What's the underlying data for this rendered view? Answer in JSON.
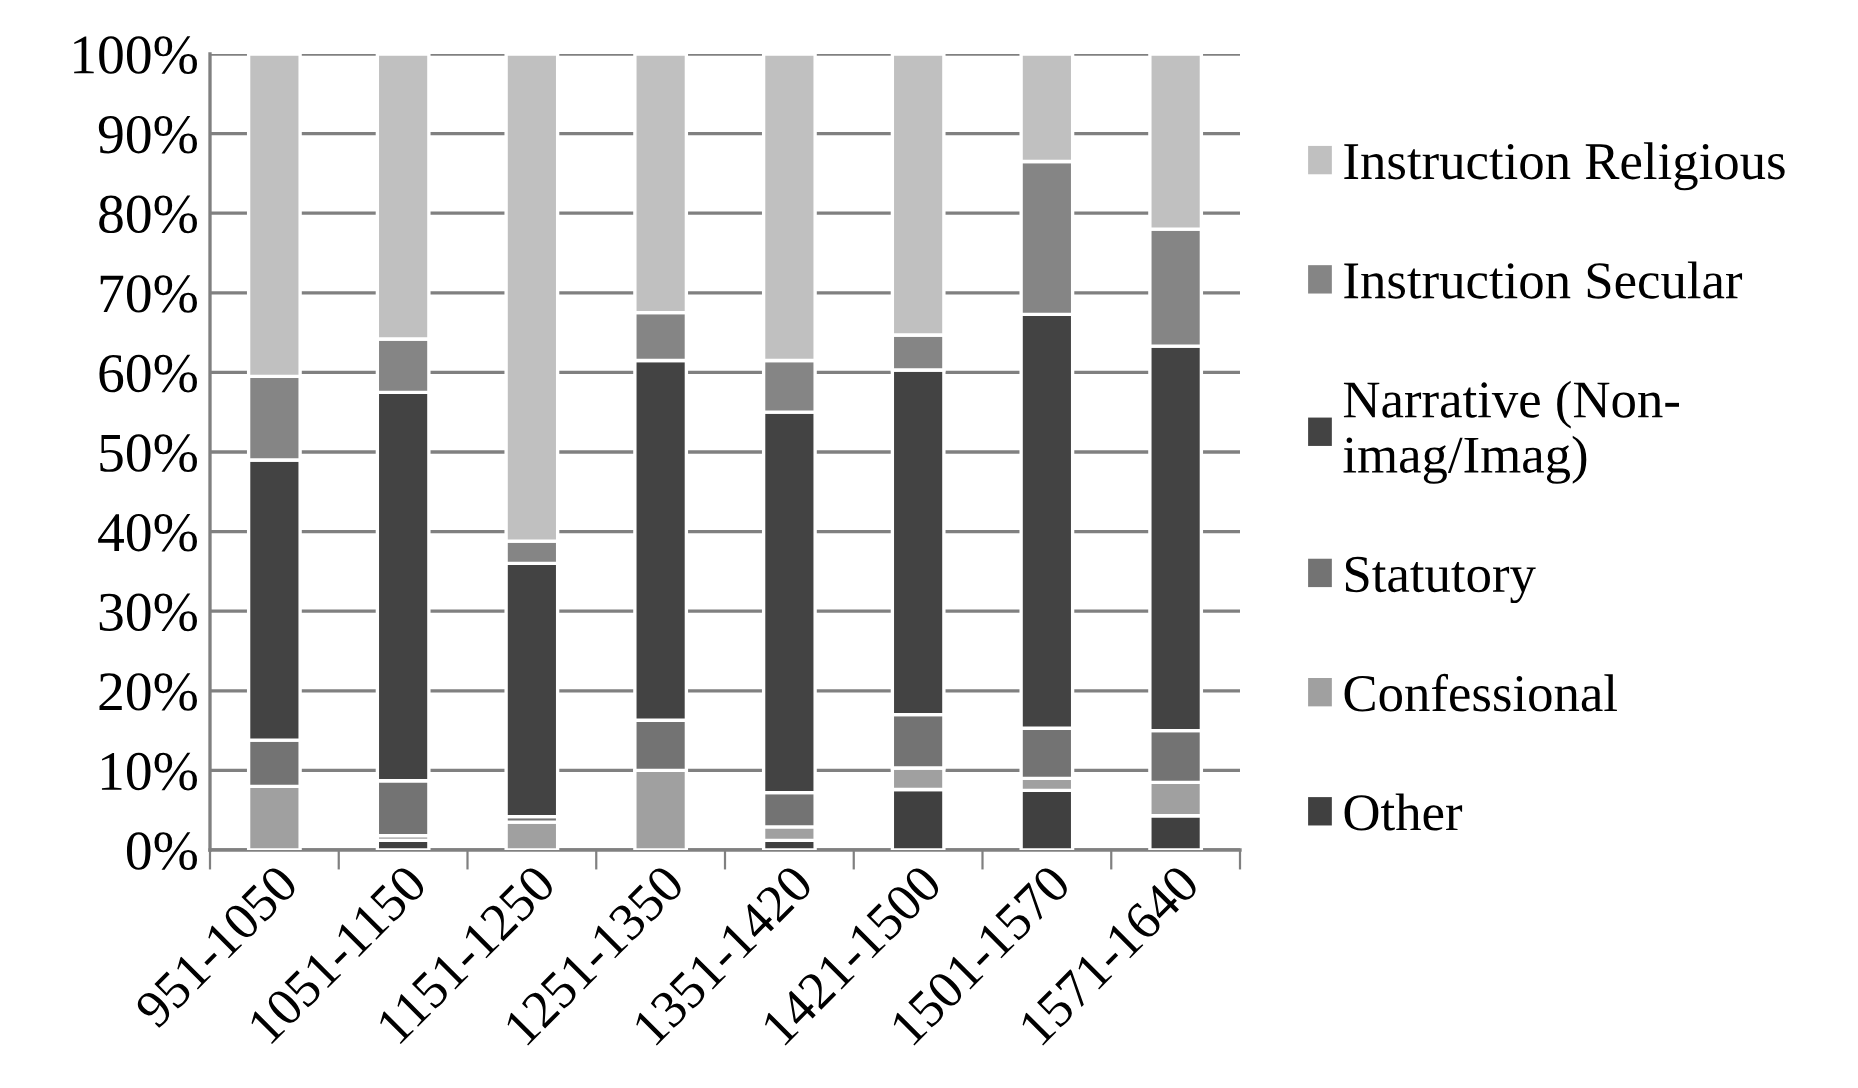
{
  "chart_data": {
    "type": "bar",
    "stacked": true,
    "categories": [
      "951-1050",
      "1051-1150",
      "1151-1250",
      "1251-1350",
      "1351-1420",
      "1421-1500",
      "1501-1570",
      "1571-1640"
    ],
    "series": [
      {
        "name": "Other",
        "color": "#404040",
        "values": [
          0,
          1.2,
          0,
          null,
          1.2,
          7.6,
          7.5,
          4.3
        ]
      },
      {
        "name": "Confessional",
        "color": "#a0a0a0",
        "values": [
          8,
          0.6,
          3.5,
          10,
          1.7,
          2.7,
          1.5,
          4.2
        ]
      },
      {
        "name": "Statutory",
        "color": "#737373",
        "values": [
          5.8,
          6.9,
          0.7,
          6.3,
          4.3,
          6.7,
          6.3,
          6.5
        ]
      },
      {
        "name": "Narrative (Non-\nimag/Imag)",
        "color": "#434343",
        "values": [
          35.2,
          48.8,
          31.8,
          45.2,
          47.8,
          43.3,
          52,
          48.3
        ]
      },
      {
        "name": "Instruction Secular",
        "color": "#858585",
        "values": [
          10.5,
          6.7,
          2.8,
          6,
          6.5,
          4.4,
          19.2,
          14.7
        ]
      },
      {
        "name": "Instruction Religious",
        "color": "#c0c0c0",
        "values": [
          40.5,
          35.8,
          61.2,
          32.5,
          38.5,
          35.3,
          13.5,
          22
        ]
      }
    ],
    "ylim": [
      0,
      100
    ],
    "yticks": [
      {
        "value": 0,
        "label": "0%"
      },
      {
        "value": 10,
        "label": "10%"
      },
      {
        "value": 20,
        "label": "20%"
      },
      {
        "value": 30,
        "label": "30%"
      },
      {
        "value": 40,
        "label": "40%"
      },
      {
        "value": 50,
        "label": "50%"
      },
      {
        "value": 60,
        "label": "60%"
      },
      {
        "value": 70,
        "label": "70%"
      },
      {
        "value": 80,
        "label": "80%"
      },
      {
        "value": 90,
        "label": "90%"
      },
      {
        "value": 100,
        "label": "100%"
      }
    ],
    "grid": "y",
    "legend": "right"
  }
}
